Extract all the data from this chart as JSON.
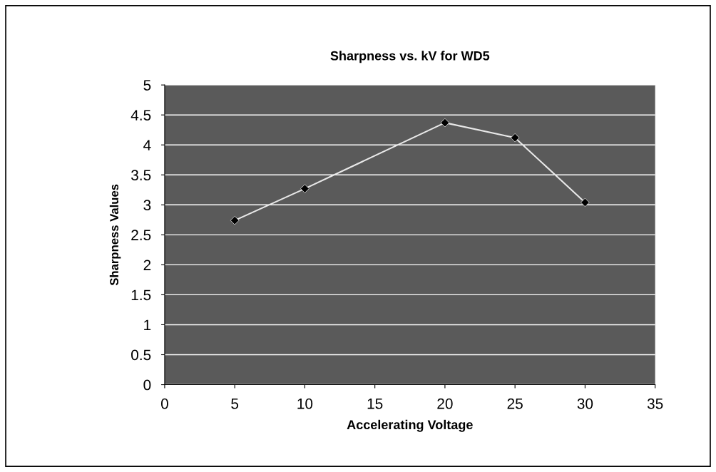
{
  "chart_data": {
    "type": "line",
    "title": "Sharpness vs. kV for WD5",
    "xlabel": "Accelerating Voltage",
    "ylabel": "Sharpness Values",
    "x": [
      5,
      10,
      20,
      25,
      30
    ],
    "series": [
      {
        "color": "#e8e8e8",
        "values": [
          2.74,
          3.27,
          4.37,
          4.12,
          3.04
        ]
      }
    ],
    "xlim": [
      0,
      35
    ],
    "xticks": [
      0,
      5,
      10,
      15,
      20,
      25,
      30,
      35
    ],
    "ylim": [
      0,
      5
    ],
    "yticks": [
      0,
      0.5,
      1,
      1.5,
      2,
      2.5,
      3,
      3.5,
      4,
      4.5,
      5
    ],
    "grid": "y",
    "legend": false,
    "marker": "diamond",
    "line_style": "solid"
  }
}
